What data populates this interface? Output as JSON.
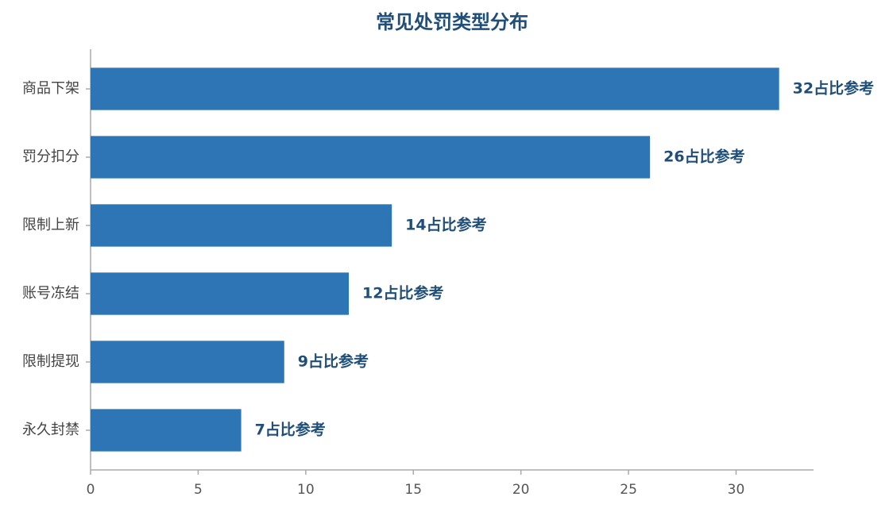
{
  "chart_data": {
    "type": "bar",
    "orientation": "horizontal",
    "title": "常见处罚类型分布",
    "categories": [
      "商品下架",
      "罚分扣分",
      "限制上新",
      "账号冻结",
      "限制提现",
      "永久封禁"
    ],
    "values": [
      32,
      26,
      14,
      12,
      9,
      7
    ],
    "value_labels": [
      "32占比参考",
      "26占比参考",
      "14占比参考",
      "12占比参考",
      "9占比参考",
      "7占比参考"
    ],
    "color": "#2e75b6",
    "xlim": [
      0,
      33.6
    ],
    "xticks": [
      0,
      5,
      10,
      15,
      20,
      25,
      30
    ],
    "grid": false
  }
}
